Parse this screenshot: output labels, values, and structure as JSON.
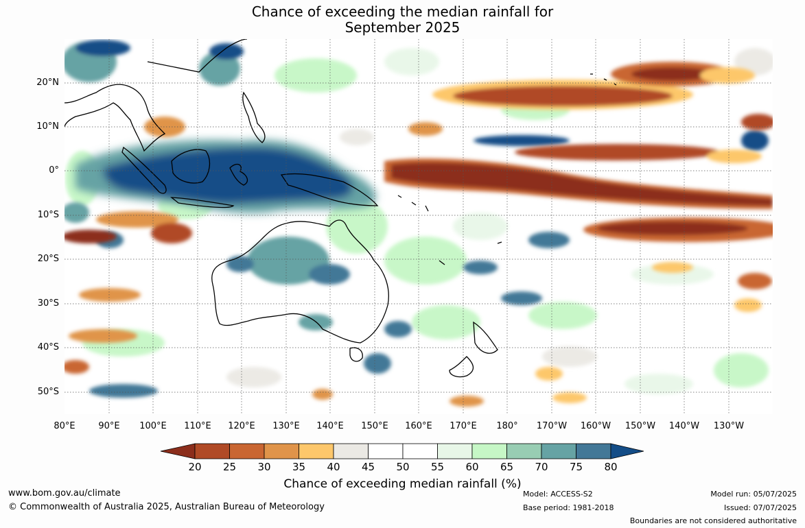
{
  "title": {
    "line1": "Chance of exceeding the median rainfall for",
    "line2": "September 2025"
  },
  "map": {
    "lat_ticks": [
      "20°N",
      "10°N",
      "0°",
      "10°S",
      "20°S",
      "30°S",
      "40°S",
      "50°S"
    ],
    "lon_ticks": [
      "80°E",
      "90°E",
      "100°E",
      "110°E",
      "120°E",
      "130°E",
      "140°E",
      "150°E",
      "160°E",
      "170°E",
      "180°",
      "170°W",
      "160°W",
      "150°W",
      "140°W",
      "130°W"
    ],
    "ocean_color": "#ffffff",
    "coastline_color": "#000000"
  },
  "colorbar": {
    "ticks": [
      "20",
      "25",
      "30",
      "35",
      "40",
      "45",
      "50",
      "55",
      "60",
      "65",
      "70",
      "75",
      "80"
    ],
    "colors": [
      "#8c2e1c",
      "#b04a26",
      "#c96632",
      "#e0944a",
      "#fdc76b",
      "#ebe9e4",
      "#ffffff",
      "#ffffff",
      "#e8f7e8",
      "#c6f7c6",
      "#98cdb3",
      "#66a3a4",
      "#437897",
      "#144d87"
    ],
    "label": "Chance of exceeding median rainfall (%)"
  },
  "footer": {
    "website": "www.bom.gov.au/climate",
    "copyright": "© Commonwealth of Australia 2025, Australian Bureau of Meteorology",
    "model": "Model: ACCESS-S2",
    "base_period": "Base period: 1981-2018",
    "model_run": "Model run: 05/07/2025",
    "issued": "Issued: 07/07/2025",
    "disclaimer": "Boundaries are not considered authoritative"
  }
}
